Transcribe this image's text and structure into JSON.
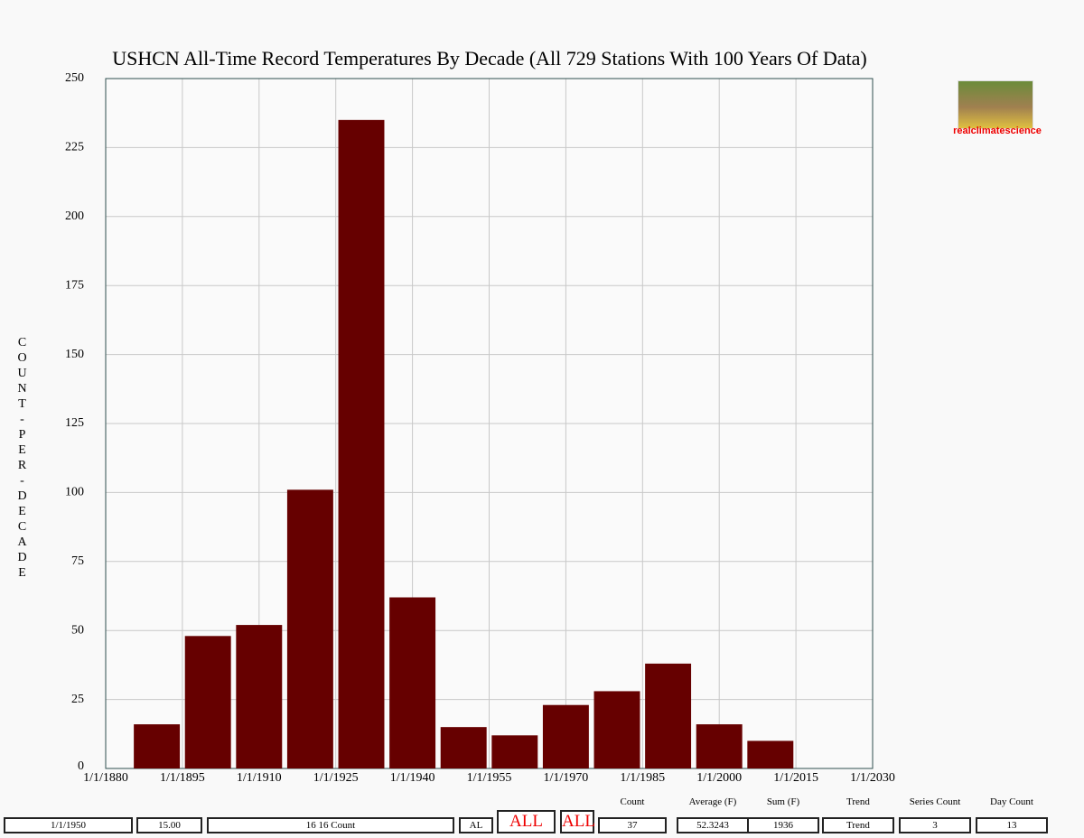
{
  "chart_data": {
    "type": "bar",
    "title": "USHCN All-Time Record Temperatures By Decade (All 729 Stations With 100 Years Of Data)",
    "y_label": "COUNT-PER-DECADE",
    "x": [
      1890,
      1900,
      1910,
      1920,
      1930,
      1940,
      1950,
      1960,
      1970,
      1980,
      1990,
      2000,
      2010
    ],
    "values": [
      16,
      48,
      52,
      101,
      235,
      62,
      15,
      12,
      23,
      28,
      38,
      16,
      10
    ],
    "color": "#660000",
    "xlim": [
      1880,
      2030
    ],
    "xticks": [
      {
        "value": 1880,
        "label": "1/1/1880"
      },
      {
        "value": 1895,
        "label": "1/1/1895"
      },
      {
        "value": 1910,
        "label": "1/1/1910"
      },
      {
        "value": 1925,
        "label": "1/1/1925"
      },
      {
        "value": 1940,
        "label": "1/1/1940"
      },
      {
        "value": 1955,
        "label": "1/1/1955"
      },
      {
        "value": 1970,
        "label": "1/1/1970"
      },
      {
        "value": 1985,
        "label": "1/1/1985"
      },
      {
        "value": 2000,
        "label": "1/1/2000"
      },
      {
        "value": 2015,
        "label": "1/1/2015"
      },
      {
        "value": 2030,
        "label": "1/1/2030"
      }
    ],
    "ylim": [
      0,
      250
    ],
    "yticks": [
      0,
      25,
      50,
      75,
      100,
      125,
      150,
      175,
      200,
      225,
      250
    ],
    "grid": true
  },
  "logo_text": "realclimatescience",
  "controls": {
    "date": "1/1/1950",
    "interval": "15.00",
    "series": "16 16 Count",
    "state": "AL",
    "buttons": [
      "ALL",
      "ALL"
    ]
  },
  "stats": [
    {
      "label": "Count",
      "value": 37
    },
    {
      "label": "Average (F)",
      "value": 52.3243
    },
    {
      "label": "Sum (F)",
      "value": 1936
    },
    {
      "label": "Trend",
      "value": "Trend"
    },
    {
      "label": "Series Count",
      "value": 3
    },
    {
      "label": "Day Count",
      "value": 13
    }
  ]
}
